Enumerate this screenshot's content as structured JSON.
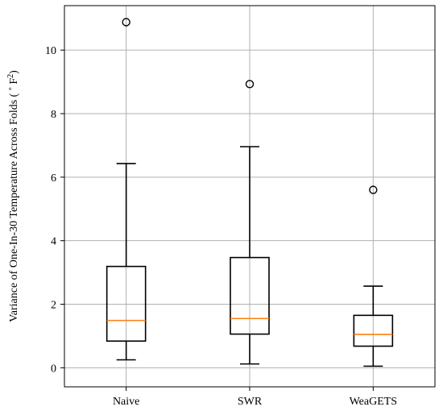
{
  "chart_data": {
    "type": "box",
    "title": "",
    "xlabel": "",
    "ylabel": "Variance of One-In-30 Temperature Across Folds ( ° F²)",
    "ylabel_parts": {
      "main": "Variance of One-In-30 Temperature Across Folds ( ",
      "degree": "°",
      "unit": " F",
      "superscript": "2",
      "close": ")"
    },
    "ylim": [
      -0.6,
      11.4
    ],
    "yticks": [
      0,
      2,
      4,
      6,
      8,
      10
    ],
    "grid": true,
    "categories": [
      "Naive",
      "SWR",
      "WeaGETS"
    ],
    "boxes": [
      {
        "category": "Naive",
        "whisker_low": 0.25,
        "q1": 0.84,
        "median": 1.49,
        "q3": 3.19,
        "whisker_high": 6.43,
        "outliers": [
          10.88
        ]
      },
      {
        "category": "SWR",
        "whisker_low": 0.12,
        "q1": 1.06,
        "median": 1.55,
        "q3": 3.47,
        "whisker_high": 6.96,
        "outliers": [
          8.93
        ]
      },
      {
        "category": "WeaGETS",
        "whisker_low": 0.05,
        "q1": 0.68,
        "median": 1.05,
        "q3": 1.65,
        "whisker_high": 2.57,
        "outliers": [
          5.6
        ]
      }
    ],
    "colors": {
      "box": "#000000",
      "median": "#ff7f0e",
      "grid": "#b0b0b0",
      "outlier": "#000000"
    }
  }
}
